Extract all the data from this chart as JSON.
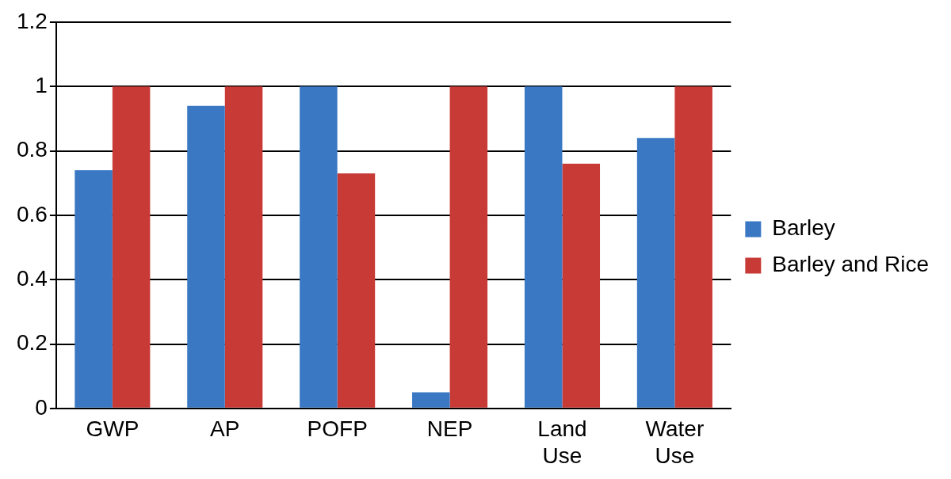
{
  "chart_data": {
    "type": "bar",
    "categories": [
      "GWP",
      "AP",
      "POFP",
      "NEP",
      "Land Use",
      "Water Use"
    ],
    "series": [
      {
        "name": "Barley",
        "color": "#3a78c4",
        "values": [
          0.74,
          0.94,
          1,
          0.05,
          1,
          0.84
        ]
      },
      {
        "name": "Barley and Rice",
        "color": "#c83a36",
        "values": [
          1,
          1,
          0.73,
          1,
          0.76,
          1
        ]
      }
    ],
    "ylim": [
      0,
      1.2
    ],
    "yticks": [
      0,
      0.2,
      0.4,
      0.6,
      0.8,
      1,
      1.2
    ],
    "grid": "y",
    "legend": "right"
  }
}
